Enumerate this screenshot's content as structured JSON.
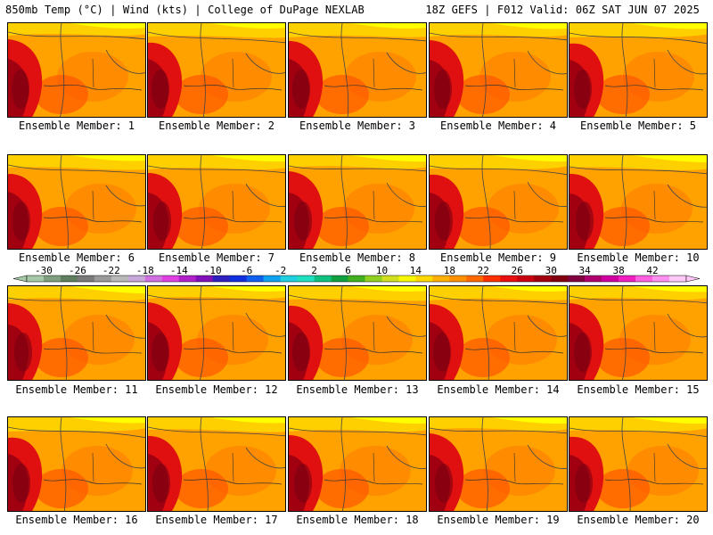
{
  "header": {
    "left": "850mb Temp (°C) | Wind (kts) | College of DuPage NEXLAB",
    "right": "18Z GEFS | F012 Valid: 06Z SAT JUN 07 2025"
  },
  "panels": [
    {
      "label": "Ensemble Member: 1"
    },
    {
      "label": "Ensemble Member: 2"
    },
    {
      "label": "Ensemble Member: 3"
    },
    {
      "label": "Ensemble Member: 4"
    },
    {
      "label": "Ensemble Member: 5"
    },
    {
      "label": "Ensemble Member: 6"
    },
    {
      "label": "Ensemble Member: 7"
    },
    {
      "label": "Ensemble Member: 8"
    },
    {
      "label": "Ensemble Member: 9"
    },
    {
      "label": "Ensemble Member: 10"
    },
    {
      "label": "Ensemble Member: 11"
    },
    {
      "label": "Ensemble Member: 12"
    },
    {
      "label": "Ensemble Member: 13"
    },
    {
      "label": "Ensemble Member: 14"
    },
    {
      "label": "Ensemble Member: 15"
    },
    {
      "label": "Ensemble Member: 16"
    },
    {
      "label": "Ensemble Member: 17"
    },
    {
      "label": "Ensemble Member: 18"
    },
    {
      "label": "Ensemble Member: 19"
    },
    {
      "label": "Ensemble Member: 20"
    }
  ],
  "colorbar": {
    "labels": [
      "-30",
      "-26",
      "-22",
      "-18",
      "-14",
      "-10",
      "-6",
      "-2",
      "2",
      "6",
      "10",
      "14",
      "18",
      "22",
      "26",
      "30",
      "34",
      "38",
      "42"
    ],
    "colors": [
      "#a6c8a6",
      "#7f9f7f",
      "#5f7f5f",
      "#7a7a7a",
      "#9a9a9a",
      "#b9b9b9",
      "#c8a8d8",
      "#d070e0",
      "#e040e0",
      "#b020c8",
      "#8010b8",
      "#3020c0",
      "#1030e0",
      "#1060f0",
      "#10a0f0",
      "#20d0e0",
      "#20e0c0",
      "#10c080",
      "#10a040",
      "#40b020",
      "#90d020",
      "#d0e020",
      "#f8f800",
      "#ffd800",
      "#ffb000",
      "#ff9000",
      "#ff6a00",
      "#ff3000",
      "#e81010",
      "#c80010",
      "#a00010",
      "#800010",
      "#800040",
      "#b00070",
      "#d000a0",
      "#f020c0",
      "#ff60e0",
      "#ff90f0",
      "#ffc8f8"
    ]
  },
  "palette": {
    "hot": "#ffa200",
    "warm": "#ff8c00",
    "hotter": "#ff5a00",
    "red": "#e01010",
    "darkred": "#a00010",
    "cool": "#ffd000",
    "yellow": "#ffff00"
  }
}
